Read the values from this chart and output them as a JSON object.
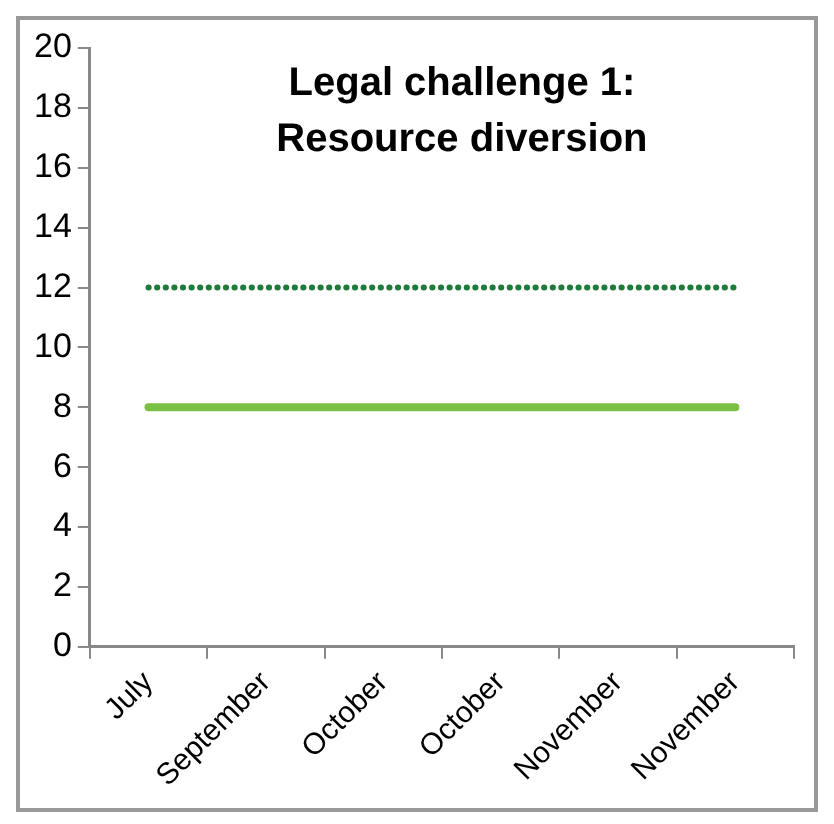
{
  "chart_data": {
    "type": "line",
    "title": "Legal challenge 1:\nResource diversion",
    "categories": [
      "July",
      "September",
      "October",
      "October",
      "November",
      "November"
    ],
    "series": [
      {
        "color": "#7ac143",
        "values": [
          8,
          8,
          8,
          8,
          8,
          8
        ],
        "line_style": "solid"
      },
      {
        "color": "#1e7b3c",
        "values": [
          12,
          12,
          12,
          12,
          12,
          12
        ],
        "line_style": "dotted"
      }
    ],
    "ylim": [
      0,
      20
    ],
    "yticks": [
      0,
      2,
      4,
      6,
      8,
      10,
      12,
      14,
      16,
      18,
      20
    ],
    "grid": false,
    "legend": false,
    "marker": "none"
  }
}
